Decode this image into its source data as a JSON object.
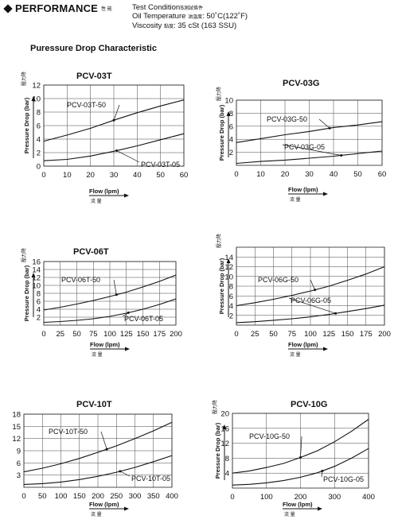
{
  "header": {
    "title": "PERFORMANCE",
    "title_cjk": "性 能",
    "conditions_label": "Test Conditions",
    "conditions_cjk": "測試條件",
    "oil_temp_label": "Oil Temperature",
    "oil_temp_cjk": "油溫度",
    "oil_temp_value": ": 50˚C(122˚F)",
    "viscosity_label": "Viscosity",
    "viscosity_cjk": "黏度",
    "viscosity_value": ": 35 cSt (163 SSU)"
  },
  "section_title": "Puressure  Drop Characteristic",
  "chart_data": [
    {
      "type": "line",
      "title": "PCV-03T",
      "xlabel": "Flow (lpm)",
      "xlabel_cjk": "流 量",
      "ylabel": "Pressure Drop (bar)",
      "ylabel_cjk": "壓力降",
      "xlim": [
        0,
        60
      ],
      "ylim": [
        0,
        12
      ],
      "xticks": [
        0,
        10,
        20,
        30,
        40,
        50,
        60
      ],
      "yticks": [
        0,
        2,
        4,
        6,
        8,
        10,
        12
      ],
      "grid": true,
      "series": [
        {
          "name": "PCV-03T-50",
          "x": [
            0,
            10,
            20,
            30,
            40,
            50,
            60
          ],
          "y": [
            3.7,
            4.6,
            5.6,
            6.8,
            7.9,
            8.9,
            9.8
          ]
        },
        {
          "name": "PCV-03T-05",
          "x": [
            0,
            10,
            20,
            30,
            40,
            50,
            60
          ],
          "y": [
            0.8,
            1.0,
            1.5,
            2.2,
            3.0,
            3.9,
            4.8
          ]
        }
      ]
    },
    {
      "type": "line",
      "title": "PCV-03G",
      "xlabel": "Flow (lpm)",
      "xlabel_cjk": "流 量",
      "ylabel": "Pressure Drop (bar)",
      "ylabel_cjk": "壓力降",
      "xlim": [
        0,
        60
      ],
      "ylim": [
        0,
        10
      ],
      "xticks": [
        0,
        10,
        20,
        30,
        40,
        50,
        60
      ],
      "yticks": [
        2,
        4,
        6,
        8,
        10
      ],
      "grid": true,
      "series": [
        {
          "name": "PCV-03G-50",
          "x": [
            0,
            10,
            20,
            30,
            40,
            50,
            60
          ],
          "y": [
            3.5,
            4.1,
            4.7,
            5.2,
            5.8,
            6.2,
            6.7
          ]
        },
        {
          "name": "PCV-03G-05",
          "x": [
            0,
            10,
            20,
            30,
            40,
            50,
            60
          ],
          "y": [
            0.3,
            0.6,
            0.8,
            1.1,
            1.4,
            1.8,
            2.2
          ]
        }
      ]
    },
    {
      "type": "line",
      "title": "PCV-06T",
      "xlabel": "Flow (lpm)",
      "xlabel_cjk": "流 量",
      "ylabel": "Pressure Drop (bar)",
      "ylabel_cjk": "壓力降",
      "xlim": [
        0,
        200
      ],
      "ylim": [
        0,
        16
      ],
      "xticks": [
        0,
        25,
        50,
        75,
        100,
        125,
        150,
        175,
        200
      ],
      "yticks": [
        2,
        4,
        6,
        8,
        10,
        12,
        14,
        16
      ],
      "grid": true,
      "series": [
        {
          "name": "PCV-06T-50",
          "x": [
            0,
            25,
            50,
            75,
            100,
            125,
            150,
            175,
            200
          ],
          "y": [
            3.8,
            4.5,
            5.3,
            6.2,
            7.2,
            8.3,
            9.6,
            11.0,
            12.6
          ]
        },
        {
          "name": "PCV-06T-05",
          "x": [
            0,
            25,
            50,
            75,
            100,
            125,
            150,
            175,
            200
          ],
          "y": [
            0.7,
            0.9,
            1.2,
            1.6,
            2.2,
            3.0,
            4.0,
            5.2,
            6.6
          ]
        }
      ]
    },
    {
      "type": "line",
      "title": "",
      "xlabel": "Flow (lpm)",
      "xlabel_cjk": "流 量",
      "ylabel": "Pressure Drop (bar)",
      "ylabel_cjk": "壓力降",
      "xlim": [
        0,
        200
      ],
      "ylim": [
        0,
        16
      ],
      "xticks": [
        0,
        25,
        50,
        75,
        100,
        125,
        150,
        175,
        200
      ],
      "yticks": [
        2,
        4,
        6,
        8,
        10,
        12,
        14
      ],
      "grid": true,
      "series": [
        {
          "name": "PCV-06G-50",
          "x": [
            0,
            25,
            50,
            75,
            100,
            125,
            150,
            175,
            200
          ],
          "y": [
            4.0,
            4.6,
            5.3,
            6.1,
            7.0,
            8.0,
            9.2,
            10.5,
            12.0
          ]
        },
        {
          "name": "PCV-06G-05",
          "x": [
            0,
            25,
            50,
            75,
            100,
            125,
            150,
            175,
            200
          ],
          "y": [
            0.5,
            0.7,
            1.0,
            1.3,
            1.7,
            2.2,
            2.8,
            3.4,
            4.1
          ]
        }
      ]
    },
    {
      "type": "line",
      "title": "PCV-10T",
      "xlabel": "Flow (lpm)",
      "xlabel_cjk": "流 量",
      "ylabel": "",
      "ylabel_cjk": "",
      "xlim": [
        0,
        400
      ],
      "ylim": [
        0,
        18
      ],
      "xticks": [
        0,
        50,
        100,
        150,
        200,
        250,
        300,
        350,
        400
      ],
      "yticks": [
        3,
        6,
        9,
        12,
        15,
        18
      ],
      "grid": true,
      "series": [
        {
          "name": "PCV-10T-50",
          "x": [
            0,
            50,
            100,
            150,
            200,
            250,
            300,
            350,
            400
          ],
          "y": [
            3.8,
            4.7,
            5.8,
            7.1,
            8.6,
            10.2,
            12.0,
            13.9,
            16.0
          ]
        },
        {
          "name": "PCV-10T-05",
          "x": [
            0,
            50,
            100,
            150,
            200,
            250,
            300,
            350,
            400
          ],
          "y": [
            0.7,
            0.9,
            1.3,
            1.9,
            2.7,
            3.7,
            4.9,
            6.3,
            7.8
          ]
        }
      ]
    },
    {
      "type": "line",
      "title": "PCV-10G",
      "xlabel": "Flow (lpm)",
      "xlabel_cjk": "流 量",
      "ylabel": "Pressure Drop (bar)",
      "ylabel_cjk": "壓力降",
      "xlim": [
        0,
        400
      ],
      "ylim": [
        0,
        20
      ],
      "xticks": [
        0,
        100,
        200,
        300,
        400
      ],
      "yticks": [
        4,
        8,
        12,
        16,
        20
      ],
      "grid": true,
      "series": [
        {
          "name": "PCV-10G-50",
          "x": [
            0,
            50,
            100,
            150,
            200,
            250,
            300,
            350,
            400
          ],
          "y": [
            4.0,
            4.6,
            5.5,
            6.6,
            8.2,
            10.0,
            12.4,
            15.2,
            18.4
          ]
        },
        {
          "name": "PCV-10G-05",
          "x": [
            0,
            50,
            100,
            150,
            200,
            250,
            300,
            350,
            400
          ],
          "y": [
            0.8,
            1.0,
            1.4,
            2.0,
            2.9,
            4.1,
            5.8,
            8.0,
            10.6
          ]
        }
      ]
    }
  ]
}
